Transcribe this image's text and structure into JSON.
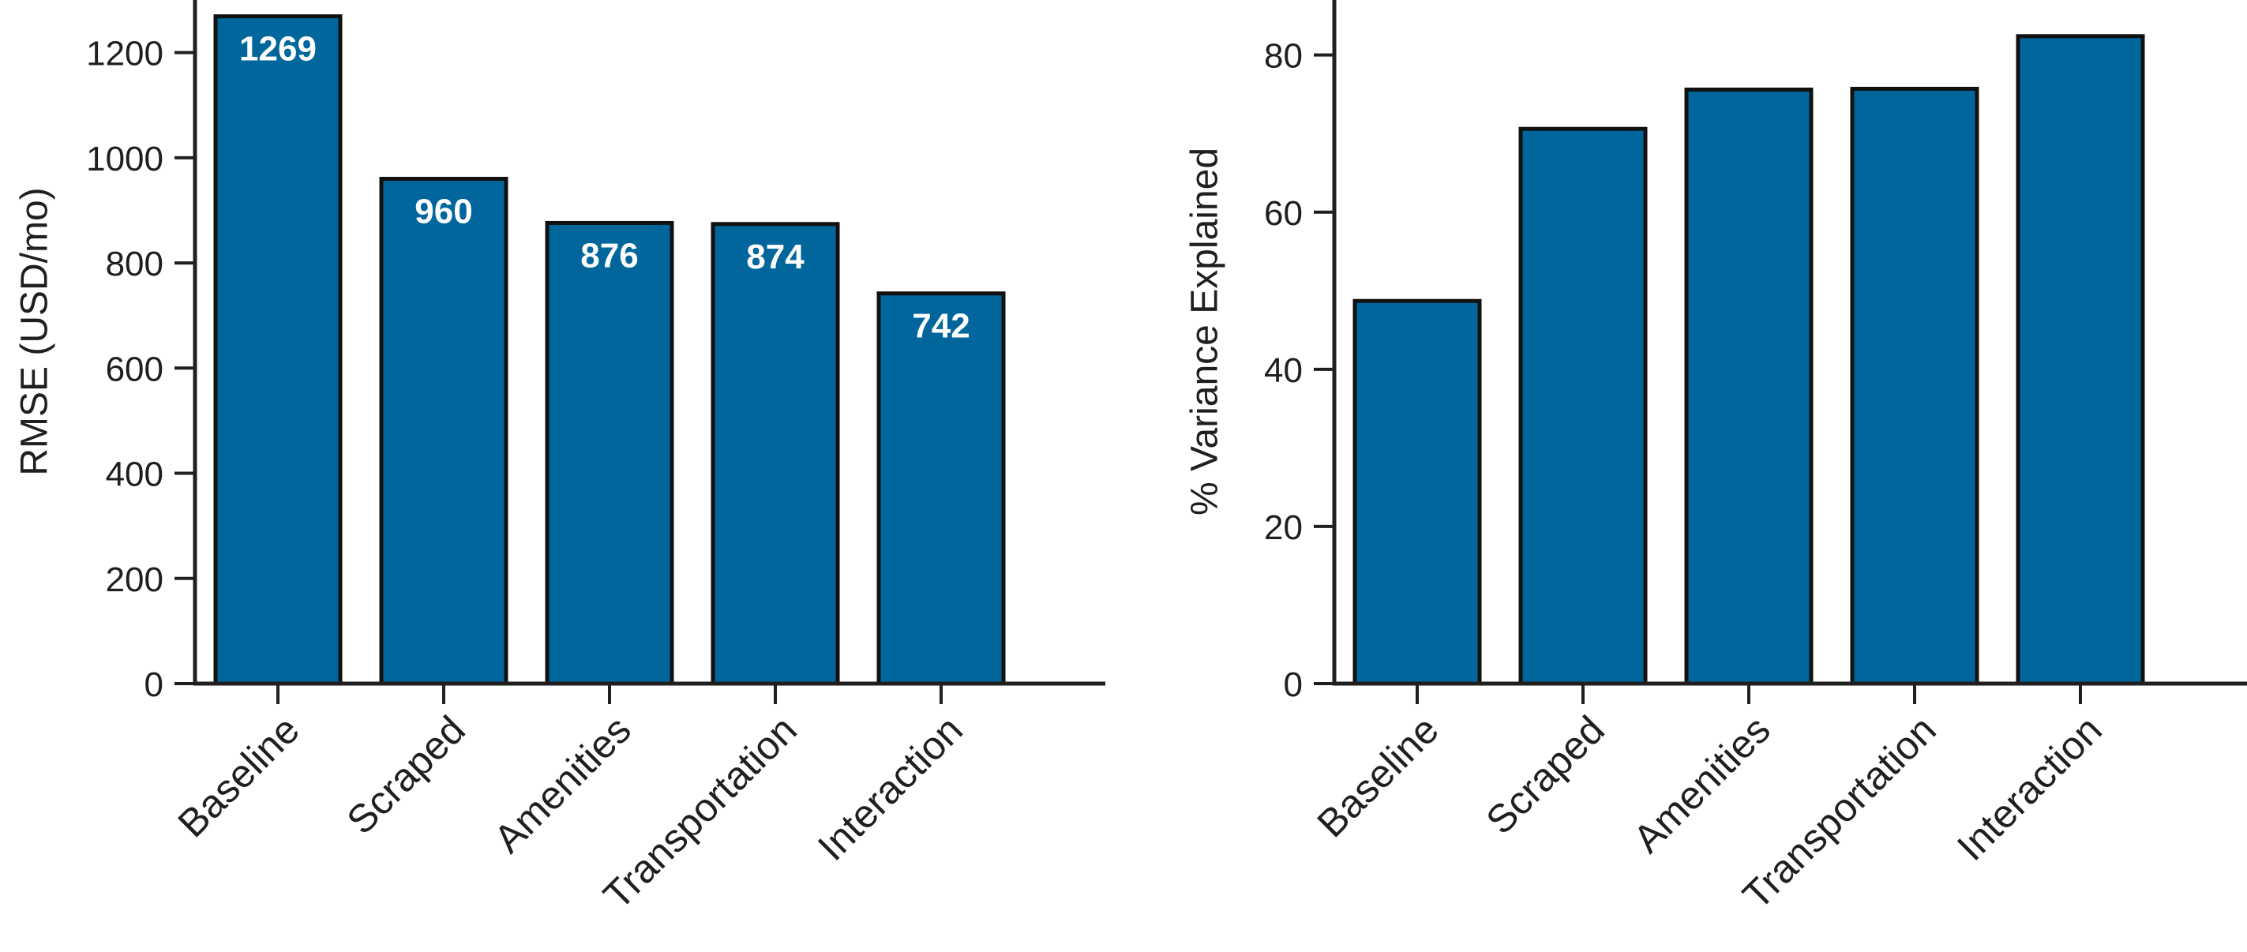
{
  "chart_data": [
    {
      "type": "bar",
      "categories": [
        "Baseline",
        "Scraped",
        "Amenities",
        "Transportation",
        "Interaction"
      ],
      "values": [
        1269,
        960,
        876,
        874,
        742
      ],
      "data_labels": [
        "1269",
        "960",
        "876",
        "874",
        "742"
      ],
      "title": "",
      "xlabel": "",
      "ylabel": "RMSE (USD/mo)",
      "ylim": [
        0,
        1300
      ],
      "yticks": [
        0,
        200,
        400,
        600,
        800,
        1000,
        1200
      ],
      "grid": false,
      "bar_color": "#00669c"
    },
    {
      "type": "bar",
      "categories": [
        "Baseline",
        "Scraped",
        "Amenities",
        "Transportation",
        "Interaction"
      ],
      "values": [
        48.7,
        70.6,
        75.6,
        75.7,
        82.4
      ],
      "title": "",
      "xlabel": "",
      "ylabel": "% Variance Explained",
      "ylim": [
        0,
        87
      ],
      "yticks": [
        0,
        20,
        40,
        60,
        80
      ],
      "grid": false,
      "bar_color": "#00669c"
    }
  ]
}
